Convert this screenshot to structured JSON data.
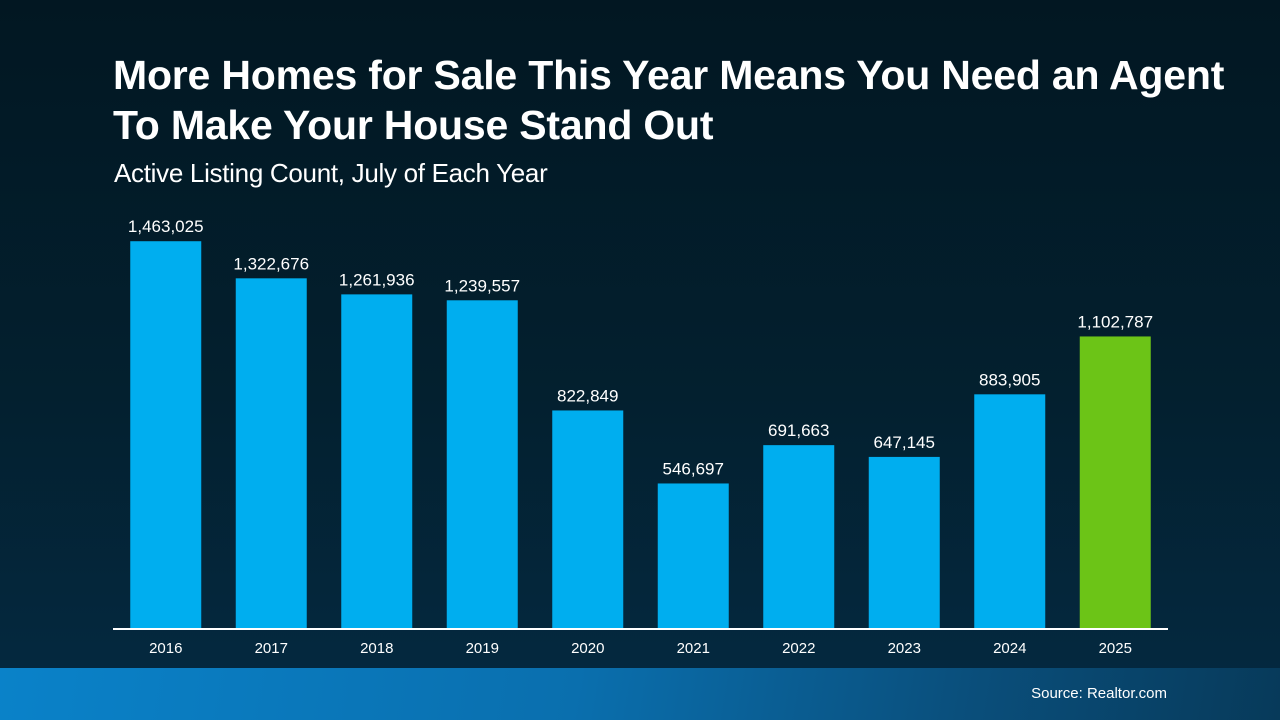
{
  "chart_data": {
    "type": "bar",
    "title": "More Homes for Sale This Year Means You Need an Agent To Make Your House Stand Out",
    "subtitle": "Active Listing Count, July of Each Year",
    "categories": [
      "2016",
      "2017",
      "2018",
      "2019",
      "2020",
      "2021",
      "2022",
      "2023",
      "2024",
      "2025"
    ],
    "values": [
      1463025,
      1322676,
      1261936,
      1239557,
      822849,
      546697,
      691663,
      647145,
      883905,
      1102787
    ],
    "data_labels": [
      "1,463,025",
      "1,322,676",
      "1,261,936",
      "1,239,557",
      "822,849",
      "546,697",
      "691,663",
      "647,145",
      "883,905",
      "1,102,787"
    ],
    "bar_colors": [
      "#00aeef",
      "#00aeef",
      "#00aeef",
      "#00aeef",
      "#00aeef",
      "#00aeef",
      "#00aeef",
      "#00aeef",
      "#00aeef",
      "#6cc417"
    ],
    "xlabel": "",
    "ylabel": "",
    "ylim": [
      0,
      1600000
    ],
    "grid": false,
    "legend": "none"
  },
  "footer": {
    "source": "Source: Realtor.com"
  }
}
